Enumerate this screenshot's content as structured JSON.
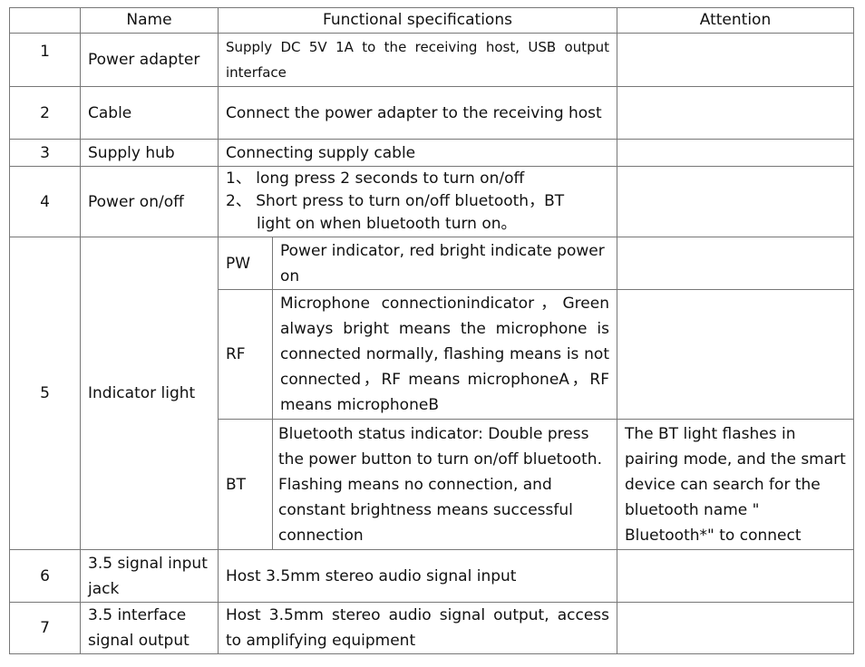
{
  "headers": [
    "",
    "Name",
    "Functional specifications",
    "Attention"
  ],
  "rows": [
    {
      "no": "1",
      "name": "Power adapter",
      "spec": "Supply DC 5V 1A to the receiving host, USB output interface",
      "attention": ""
    },
    {
      "no": "2",
      "name": "Cable",
      "spec": "Connect the power adapter to the receiving host",
      "attention": ""
    },
    {
      "no": "3",
      "name": "Supply hub",
      "spec": "Connecting supply cable",
      "attention": ""
    },
    {
      "no": "4",
      "name": "Power on/off",
      "spec_lines": [
        "1、  long press 2 seconds to turn on/off",
        "2、  Short press to turn on/off bluetooth，BT",
        "light on when bluetooth turn on。"
      ],
      "attention": ""
    },
    {
      "no": "5",
      "name": "Indicator light",
      "sub": [
        {
          "label": "PW",
          "spec": "Power indicator, red bright indicate power on",
          "attention": ""
        },
        {
          "label": "RF",
          "spec": "Microphone connectionindicator，Green always bright means the microphone is connected normally, flashing means is not connected，RF means microphoneA，RF means microphoneB",
          "attention": ""
        },
        {
          "label": "BT",
          "spec": "Bluetooth status indicator: Double press the power button to turn on/off bluetooth. Flashing means no connection, and constant brightness means successful connection",
          "attention": "The BT light flashes in pairing mode, and the smart device can search for the bluetooth name \" Bluetooth*\" to connect"
        }
      ]
    },
    {
      "no": "6",
      "name": "3.5 signal input jack",
      "spec": "Host 3.5mm stereo audio signal input",
      "attention": ""
    },
    {
      "no": "7",
      "name": "3.5 interface signal output",
      "spec": "Host 3.5mm stereo audio signal output, access to amplifying equipment",
      "attention": ""
    }
  ]
}
